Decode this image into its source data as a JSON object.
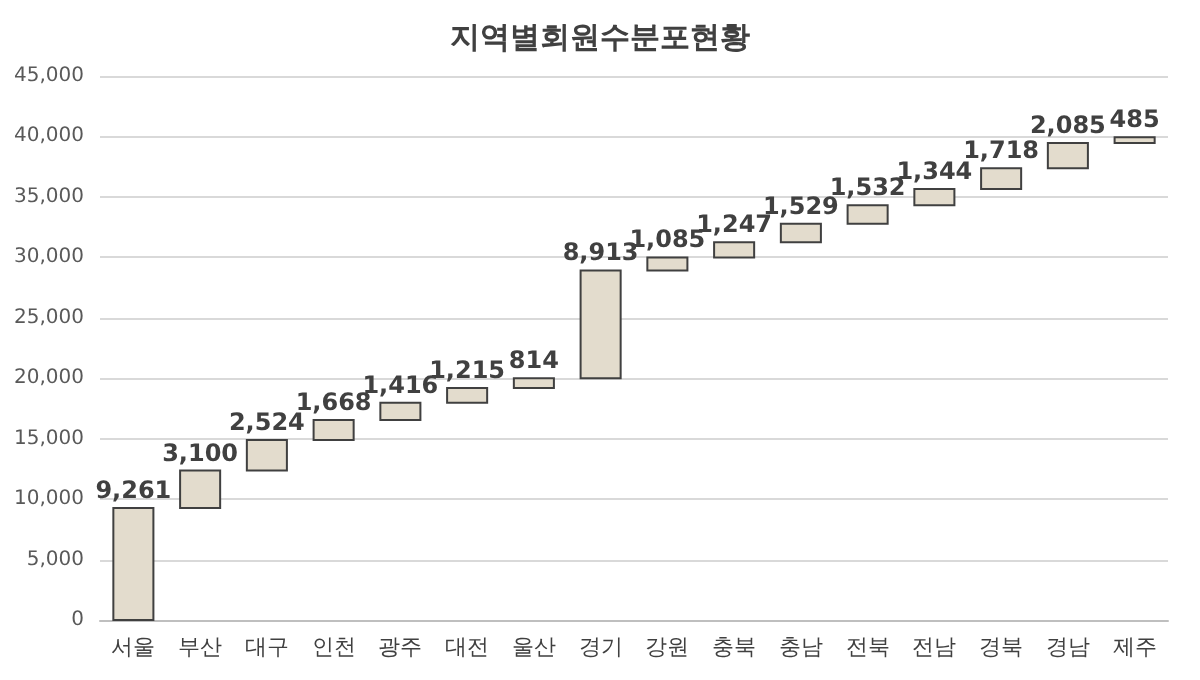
{
  "chart_data": {
    "type": "bar",
    "title": "지역별회원수분포현황",
    "categories": [
      "서울",
      "부산",
      "대구",
      "인천",
      "광주",
      "대전",
      "울산",
      "경기",
      "강원",
      "충북",
      "충남",
      "전북",
      "전남",
      "경북",
      "경남",
      "제주"
    ],
    "values": [
      9261,
      3100,
      2524,
      1668,
      1416,
      1215,
      814,
      8913,
      1085,
      1247,
      1529,
      1532,
      1344,
      1718,
      2085,
      485
    ],
    "base": [
      0,
      9261,
      12361,
      14885,
      16553,
      17969,
      19184,
      19998,
      28911,
      29996,
      31243,
      32772,
      34304,
      35648,
      37366,
      39451
    ],
    "value_labels": [
      "9,261",
      "3,100",
      "2,524",
      "1,668",
      "1,416",
      "1,215",
      "814",
      "8,913",
      "1,085",
      "1,247",
      "1,529",
      "1,532",
      "1,344",
      "1,718",
      "2,085",
      "485"
    ],
    "color": "#e3dccd",
    "ylim": [
      0,
      45000
    ],
    "yticks": [
      0,
      {
        "value": 5000,
        "label": "5,000"
      },
      {
        "value": 10000,
        "label": "10,000"
      },
      {
        "value": 15000,
        "label": "15,000"
      },
      {
        "value": 20000,
        "label": "20,000"
      },
      {
        "value": 25000,
        "label": "25,000"
      },
      {
        "value": 30000,
        "label": "30,000"
      },
      {
        "value": 35000,
        "label": "35,000"
      },
      {
        "value": 40000,
        "label": "40,000"
      },
      {
        "value": 45000,
        "label": "45,000"
      }
    ],
    "grid": "y"
  }
}
